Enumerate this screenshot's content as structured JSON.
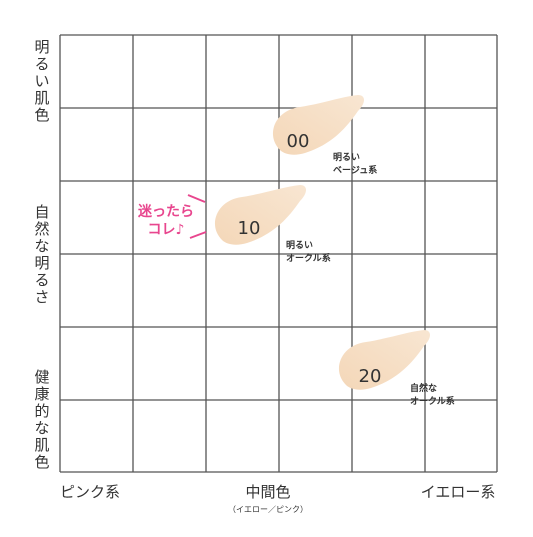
{
  "y_axis": {
    "labels": [
      "明るい肌色",
      "自然な明るさ",
      "健康的な肌色"
    ]
  },
  "x_axis": {
    "labels": [
      "ピンク系",
      "中間色",
      "イエロー系"
    ],
    "sublabel": "（イエロー／ピンク）"
  },
  "callout": {
    "lines": [
      "迷ったら",
      "コレ♪"
    ]
  },
  "shades": [
    {
      "code": "00",
      "lines": [
        "明るい",
        "ベージュ系"
      ]
    },
    {
      "code": "10",
      "lines": [
        "明るい",
        "オークル系"
      ]
    },
    {
      "code": "20",
      "lines": [
        "自然な",
        "オークル系"
      ]
    }
  ]
}
